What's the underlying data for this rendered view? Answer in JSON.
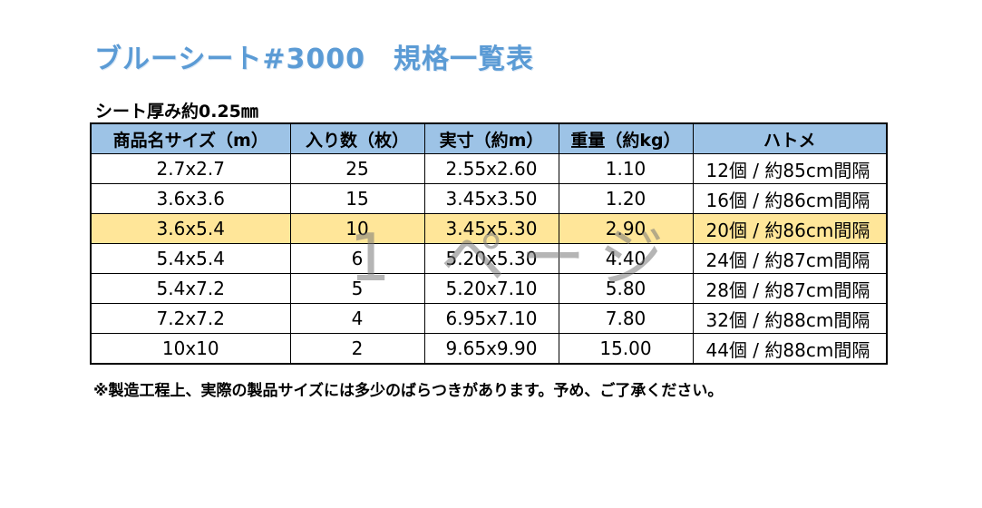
{
  "title": "ブルーシート#3000　規格一覧表",
  "subtitle": "シート厚み約0.25㎜",
  "table": {
    "headers": [
      "商品名サイズ（m）",
      "入り数（枚）",
      "実寸（約m）",
      "重量（約kg）",
      "ハトメ"
    ],
    "rows": [
      [
        "2.7x2.7",
        "25",
        "2.55x2.60",
        "1.10",
        "12個 / 約85cm間隔"
      ],
      [
        "3.6x3.6",
        "15",
        "3.45x3.50",
        "1.20",
        "16個 / 約86cm間隔"
      ],
      [
        "3.6x5.4",
        "10",
        "3.45x5.30",
        "2.90",
        "20個 / 約86cm間隔"
      ],
      [
        "5.4x5.4",
        "6",
        "5.20x5.30",
        "4.40",
        "24個 / 約87cm間隔"
      ],
      [
        "5.4x7.2",
        "5",
        "5.20x7.10",
        "5.80",
        "28個 / 約87cm間隔"
      ],
      [
        "7.2x7.2",
        "4",
        "6.95x7.10",
        "7.80",
        "32個 / 約88cm間隔"
      ],
      [
        "10x10",
        "2",
        "9.65x9.90",
        "15.00",
        "44個 / 約88cm間隔"
      ]
    ],
    "highlight_row": 2,
    "header_color": "#9dc3e6",
    "highlight_color": "#ffe699"
  },
  "note": "※製造工程上、実際の製品サイズには多少のばらつきがあります。予め、ご了承ください。",
  "watermark": "1 ページ",
  "colors": {
    "title": "#5b9bd5"
  }
}
